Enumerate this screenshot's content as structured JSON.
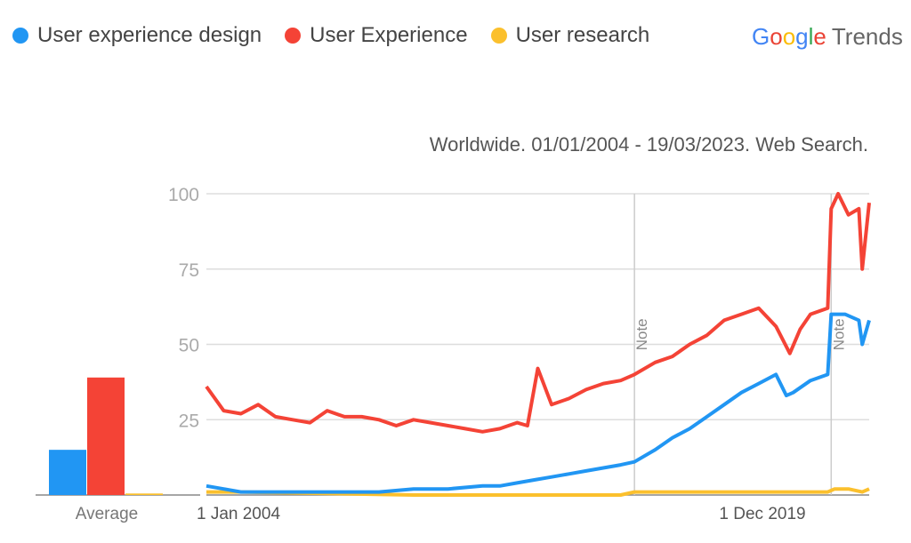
{
  "chart_data": {
    "type": "line",
    "subtitle": "Worldwide. 01/01/2004 - 19/03/2023. Web Search.",
    "ylim": [
      0,
      100
    ],
    "yticks": [
      "100",
      "75",
      "50",
      "25"
    ],
    "xlim": [
      2004.0,
      2023.2
    ],
    "xtick_labels": [
      "1 Jan 2004",
      "1 Dec 2019"
    ],
    "notes": [
      {
        "x": 2016.4,
        "label": "Note"
      },
      {
        "x": 2022.1,
        "label": "Note"
      }
    ],
    "average_label": "Average",
    "series": [
      {
        "name": "User experience design",
        "color": "#2196f3",
        "average": 15,
        "x": [
          2004,
          2004.5,
          2005,
          2006,
          2007,
          2008,
          2009,
          2010,
          2011,
          2012,
          2012.5,
          2013,
          2013.5,
          2014,
          2014.5,
          2015,
          2015.5,
          2016,
          2016.4,
          2017,
          2017.5,
          2018,
          2018.5,
          2019,
          2019.5,
          2020,
          2020.5,
          2020.8,
          2021,
          2021.5,
          2022,
          2022.1,
          2022.5,
          2022.9,
          2023,
          2023.2
        ],
        "y": [
          3,
          2,
          1,
          1,
          1,
          1,
          1,
          2,
          2,
          3,
          3,
          4,
          5,
          6,
          7,
          8,
          9,
          10,
          11,
          15,
          19,
          22,
          26,
          30,
          34,
          37,
          40,
          33,
          34,
          38,
          40,
          60,
          60,
          58,
          50,
          58
        ]
      },
      {
        "name": "User Experience",
        "color": "#f44336",
        "average": 39,
        "x": [
          2004,
          2004.5,
          2005,
          2005.5,
          2006,
          2006.5,
          2007,
          2007.5,
          2008,
          2008.5,
          2009,
          2009.5,
          2010,
          2010.5,
          2011,
          2011.5,
          2012,
          2012.5,
          2013,
          2013.3,
          2013.6,
          2014,
          2014.5,
          2015,
          2015.5,
          2016,
          2016.4,
          2017,
          2017.5,
          2018,
          2018.5,
          2019,
          2019.5,
          2020,
          2020.5,
          2020.9,
          2021.2,
          2021.5,
          2022,
          2022.1,
          2022.3,
          2022.6,
          2022.9,
          2023,
          2023.2
        ],
        "y": [
          36,
          28,
          27,
          30,
          26,
          25,
          24,
          28,
          26,
          26,
          25,
          23,
          25,
          24,
          23,
          22,
          21,
          22,
          24,
          23,
          42,
          30,
          32,
          35,
          37,
          38,
          40,
          44,
          46,
          50,
          53,
          58,
          60,
          62,
          56,
          47,
          55,
          60,
          62,
          95,
          100,
          93,
          95,
          75,
          97
        ]
      },
      {
        "name": "User research",
        "color": "#fbc02d",
        "average": 0.5,
        "x": [
          2004,
          2005,
          2010,
          2016,
          2016.4,
          2018,
          2020,
          2022,
          2022.2,
          2022.6,
          2023,
          2023.2
        ],
        "y": [
          1,
          1,
          0,
          0,
          1,
          1,
          1,
          1,
          2,
          2,
          1,
          2
        ]
      }
    ]
  },
  "logo": {
    "g": "Google",
    "t": "Trends"
  }
}
